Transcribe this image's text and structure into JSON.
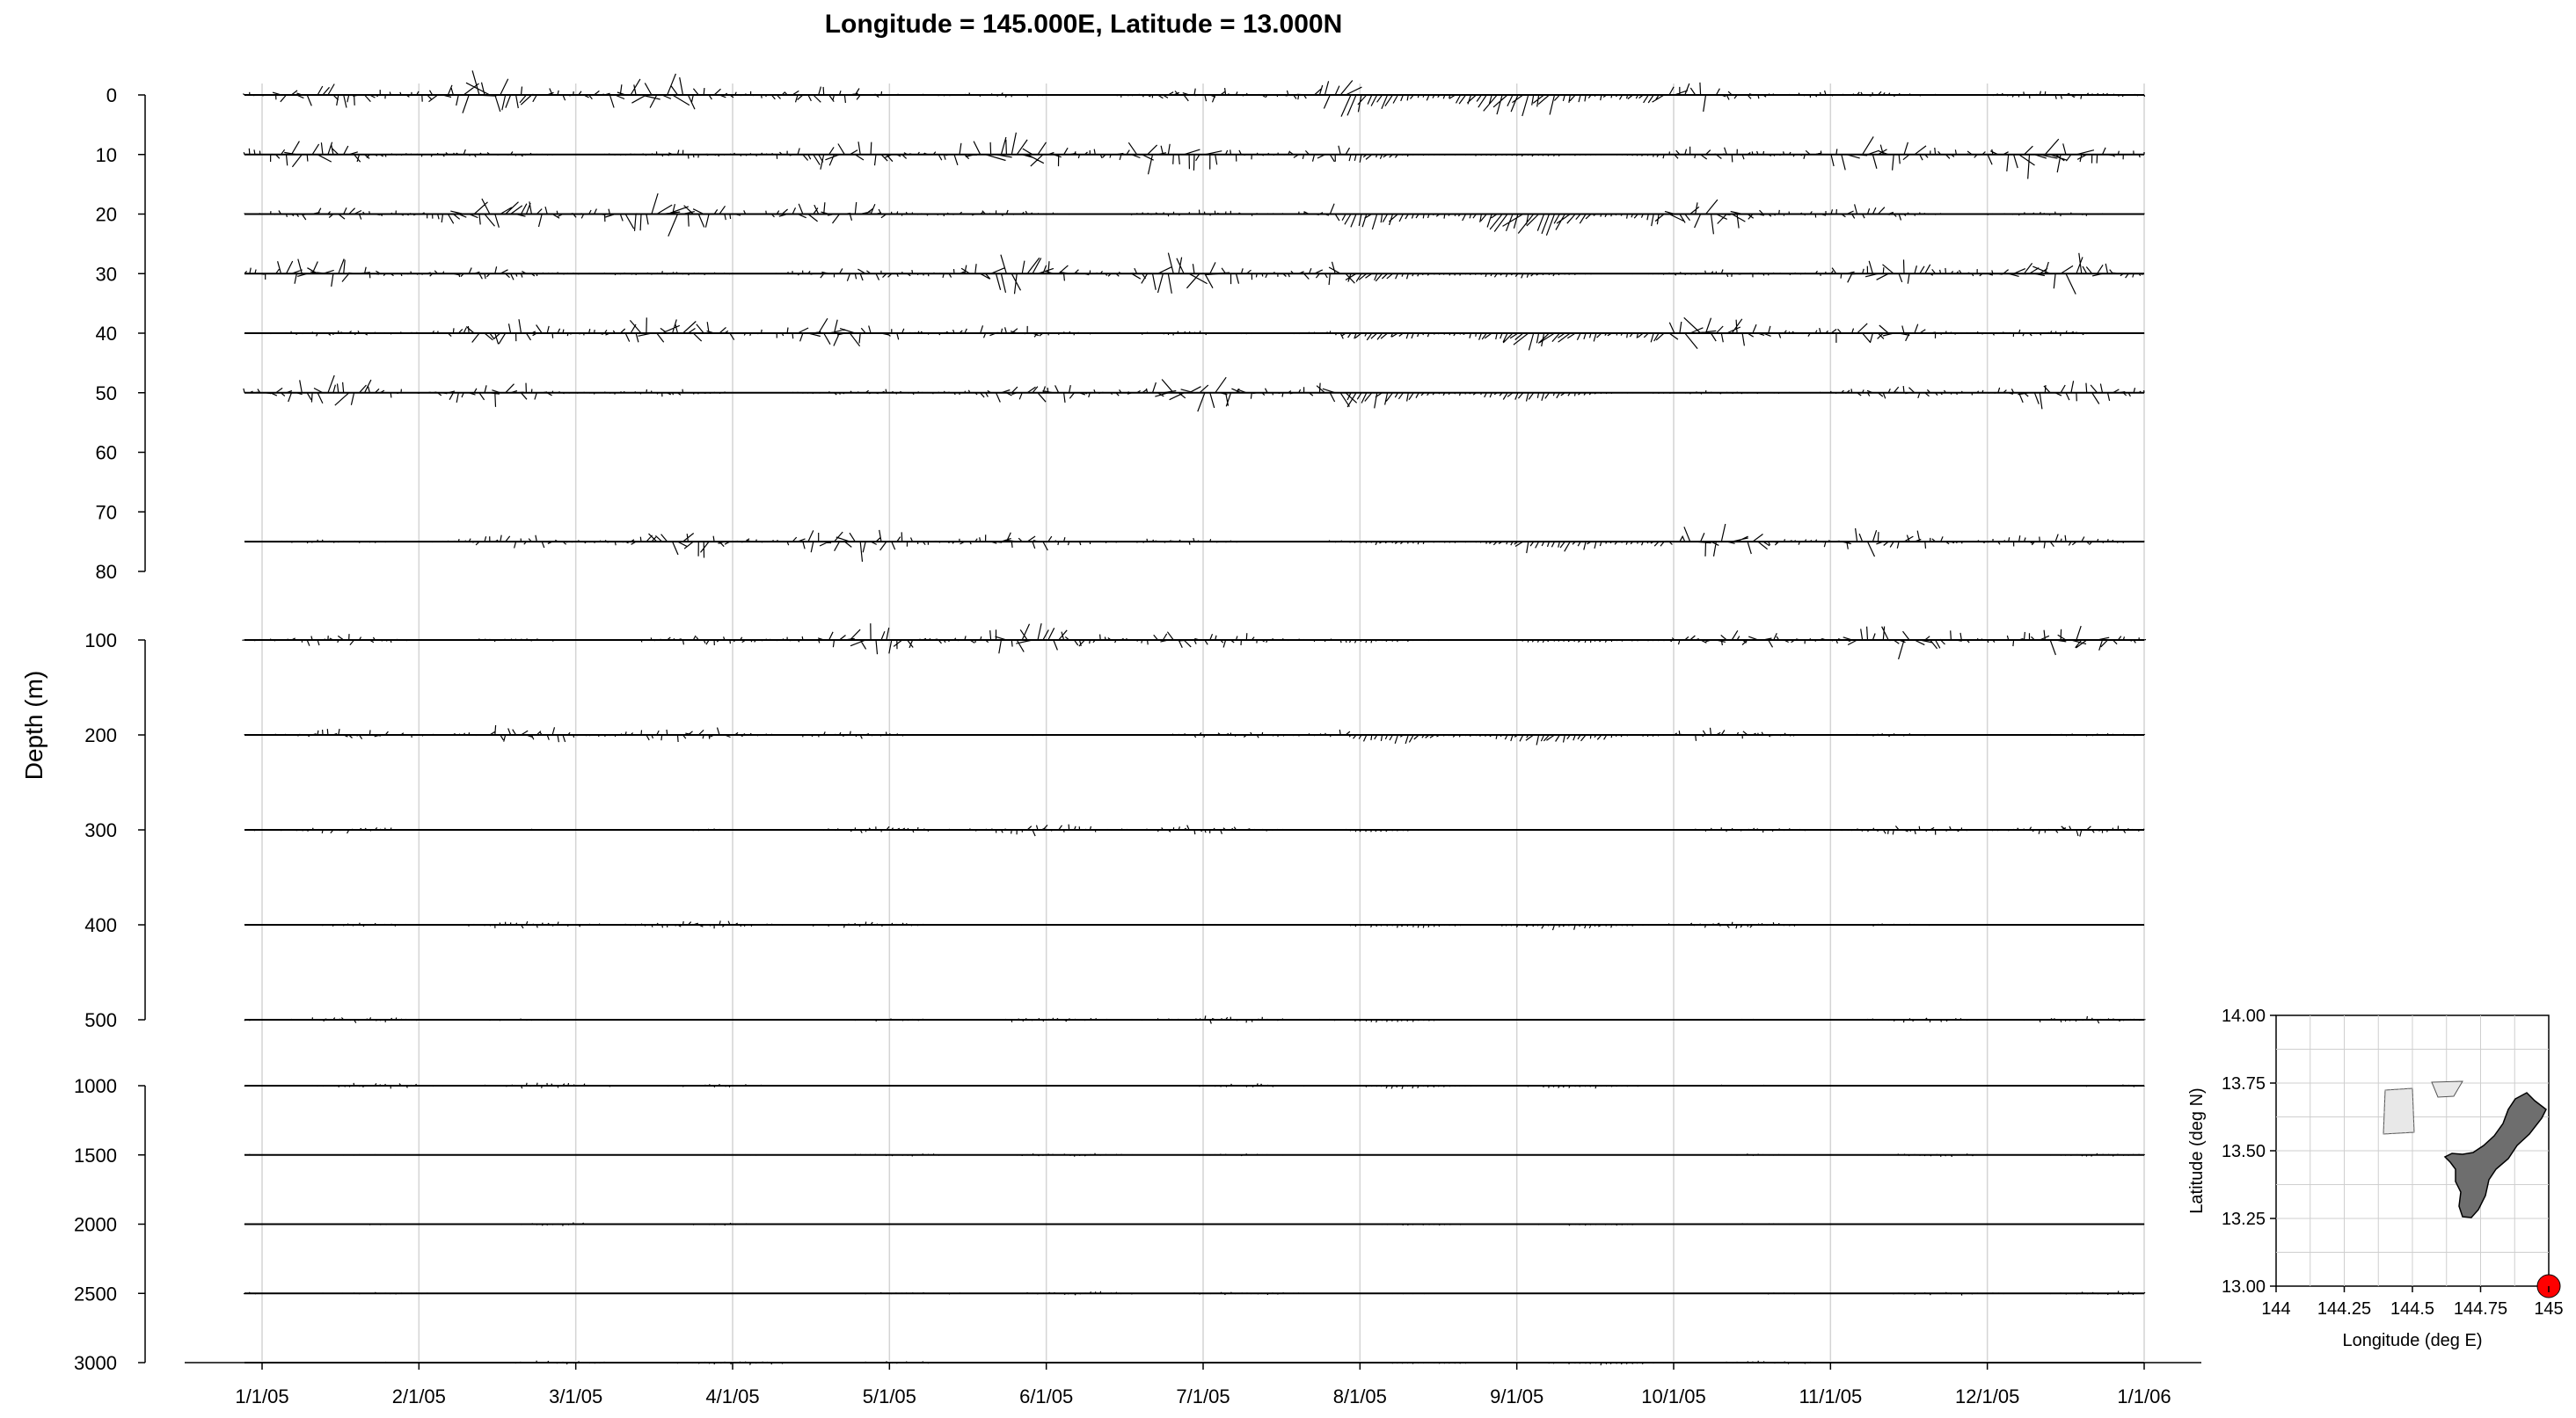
{
  "chart_data": [
    {
      "type": "stick-vector time series",
      "title": "Longitude = 145.000E, Latitude = 13.000N",
      "ylabel": "Depth (m)",
      "x_tick_labels": [
        "1/1/05",
        "2/1/05",
        "3/1/05",
        "4/1/05",
        "5/1/05",
        "6/1/05",
        "7/1/05",
        "8/1/05",
        "9/1/05",
        "10/1/05",
        "11/1/05",
        "12/1/05",
        "1/1/06"
      ],
      "panels": [
        {
          "y_tick_labels": [
            "0",
            "10",
            "20",
            "30",
            "40",
            "50",
            "60",
            "70",
            "80"
          ],
          "ylim": [
            0,
            80
          ],
          "depths": [
            0,
            10,
            20,
            30,
            40,
            50,
            75
          ]
        },
        {
          "y_tick_labels": [
            "100",
            "200",
            "300",
            "400",
            "500"
          ],
          "ylim": [
            100,
            500
          ],
          "depths": [
            100,
            200,
            300,
            400,
            500
          ]
        },
        {
          "y_tick_labels": [
            "1000",
            "1500",
            "2000",
            "2500",
            "3000"
          ],
          "ylim": [
            1000,
            3000
          ],
          "depths": [
            1000,
            1500,
            2000,
            2500,
            3000
          ]
        }
      ],
      "series": [
        {
          "depth": 0,
          "amplitude": 1.0,
          "seed": 11
        },
        {
          "depth": 10,
          "amplitude": 0.95,
          "seed": 12
        },
        {
          "depth": 20,
          "amplitude": 0.92,
          "seed": 13
        },
        {
          "depth": 30,
          "amplitude": 0.9,
          "seed": 14
        },
        {
          "depth": 40,
          "amplitude": 0.85,
          "seed": 15
        },
        {
          "depth": 50,
          "amplitude": 0.8,
          "seed": 16
        },
        {
          "depth": 75,
          "amplitude": 0.72,
          "seed": 17
        },
        {
          "depth": 100,
          "amplitude": 0.7,
          "seed": 21
        },
        {
          "depth": 200,
          "amplitude": 0.42,
          "seed": 22
        },
        {
          "depth": 300,
          "amplitude": 0.25,
          "seed": 23
        },
        {
          "depth": 400,
          "amplitude": 0.2,
          "seed": 24
        },
        {
          "depth": 500,
          "amplitude": 0.16,
          "seed": 25
        },
        {
          "depth": 1000,
          "amplitude": 0.13,
          "seed": 31
        },
        {
          "depth": 1500,
          "amplitude": 0.08,
          "seed": 32
        },
        {
          "depth": 2000,
          "amplitude": 0.07,
          "seed": 33
        },
        {
          "depth": 2500,
          "amplitude": 0.09,
          "seed": 34
        },
        {
          "depth": 3000,
          "amplitude": 0.1,
          "seed": 35
        }
      ]
    },
    {
      "type": "map",
      "xlabel": "Longitude (deg E)",
      "ylabel": "Latitude (deg N)",
      "x_tick_labels": [
        "144",
        "144.25",
        "144.5",
        "144.75",
        "145"
      ],
      "y_tick_labels": [
        "14.00",
        "13.75",
        "13.50",
        "13.25",
        "13.00"
      ],
      "xlim": [
        144,
        145
      ],
      "ylim": [
        13.0,
        14.0
      ],
      "location_marker": {
        "lon": 145.0,
        "lat": 13.0,
        "color": "#ff0000"
      },
      "land_color": "#6e6e6e"
    }
  ]
}
